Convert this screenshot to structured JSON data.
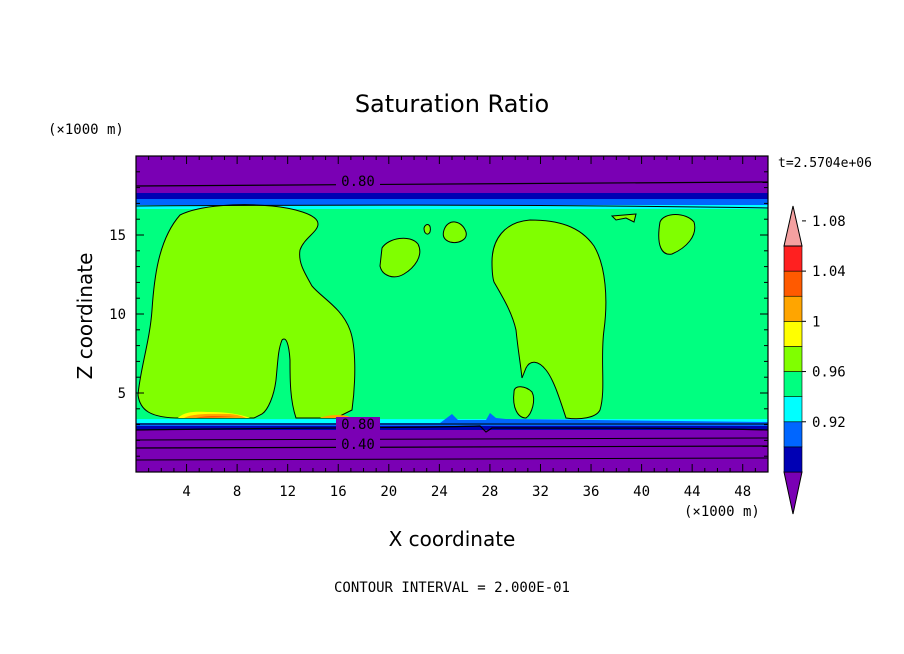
{
  "chart_data": {
    "type": "contour",
    "title": "Saturation Ratio",
    "xlabel": "X coordinate",
    "ylabel": "Z coordinate",
    "x_unit": "(×1000 m)",
    "y_unit": "(×1000 m)",
    "xlim": [
      0,
      50
    ],
    "ylim": [
      0,
      20
    ],
    "x_ticks": [
      4,
      8,
      12,
      16,
      20,
      24,
      28,
      32,
      36,
      40,
      44,
      48
    ],
    "y_ticks": [
      5,
      10,
      15
    ],
    "time_label": "t=2.5704e+06",
    "contour_interval_text": "CONTOUR INTERVAL = 2.000E-01",
    "contour_line_labels": [
      "0.80",
      "0.80",
      "0.40"
    ],
    "colorbar": {
      "levels": [
        0.92,
        0.96,
        1.0,
        1.04,
        1.08
      ],
      "tick_labels": [
        "0.92",
        "0.96",
        "1",
        "1.04",
        "1.08"
      ],
      "colors": [
        "#7a00b4",
        "#0000b4",
        "#0066ff",
        "#00ffff",
        "#00ff80",
        "#80ff00",
        "#ffff00",
        "#ffa500",
        "#ff5a00",
        "#ff2020",
        "#f4a0a0"
      ]
    },
    "colors": {
      "background_upper": "#7a00b4",
      "band_dark": "#0000b4",
      "band_blue": "#0066ff",
      "band_cyan": "#00ffff",
      "interior": "#00ff80",
      "supersaturated": "#80ff00",
      "hotspot_orange": "#ffa500",
      "hotspot_red": "#ff5a00",
      "hotspot_yellow": "#ffff00"
    }
  }
}
